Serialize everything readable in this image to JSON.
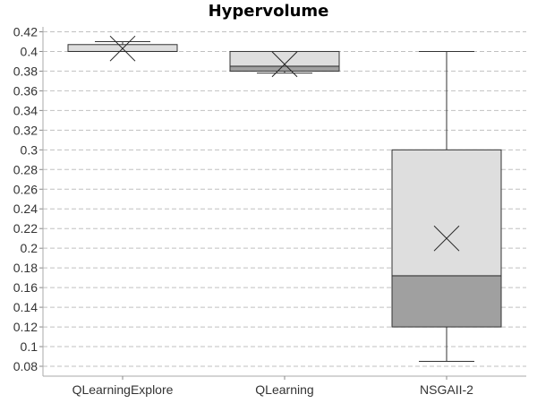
{
  "chart_data": {
    "type": "box",
    "title": "Hypervolume",
    "xlabel": "",
    "ylabel": "",
    "ylim": [
      0.07,
      0.425
    ],
    "yticks": [
      0.08,
      0.1,
      0.12,
      0.14,
      0.16,
      0.18,
      0.2,
      0.22,
      0.24,
      0.26,
      0.28,
      0.3,
      0.32,
      0.34,
      0.36,
      0.38,
      0.4,
      0.42
    ],
    "ytick_labels": [
      "0.08",
      "0.1",
      "0.12",
      "0.14",
      "0.16",
      "0.18",
      "0.2",
      "0.22",
      "0.24",
      "0.26",
      "0.28",
      "0.3",
      "0.32",
      "0.34",
      "0.36",
      "0.38",
      "0.4",
      "0.42"
    ],
    "grid": true,
    "categories": [
      "QLearningExplore",
      "QLearning",
      "NSGAII-2"
    ],
    "boxes": [
      {
        "category": "QLearningExplore",
        "min": 0.4,
        "q1": 0.4,
        "median": 0.4,
        "q3": 0.407,
        "max": 0.41,
        "mean": 0.403
      },
      {
        "category": "QLearning",
        "min": 0.378,
        "q1": 0.38,
        "median": 0.385,
        "q3": 0.4,
        "max": 0.4,
        "mean": 0.387
      },
      {
        "category": "NSGAII-2",
        "min": 0.085,
        "q1": 0.12,
        "median": 0.172,
        "q3": 0.3,
        "max": 0.4,
        "mean": 0.21
      }
    ],
    "colors": {
      "upper_box": "#dedede",
      "lower_box": "#a0a0a0",
      "grid": "#c0c0c0",
      "stroke": "#333333"
    }
  }
}
